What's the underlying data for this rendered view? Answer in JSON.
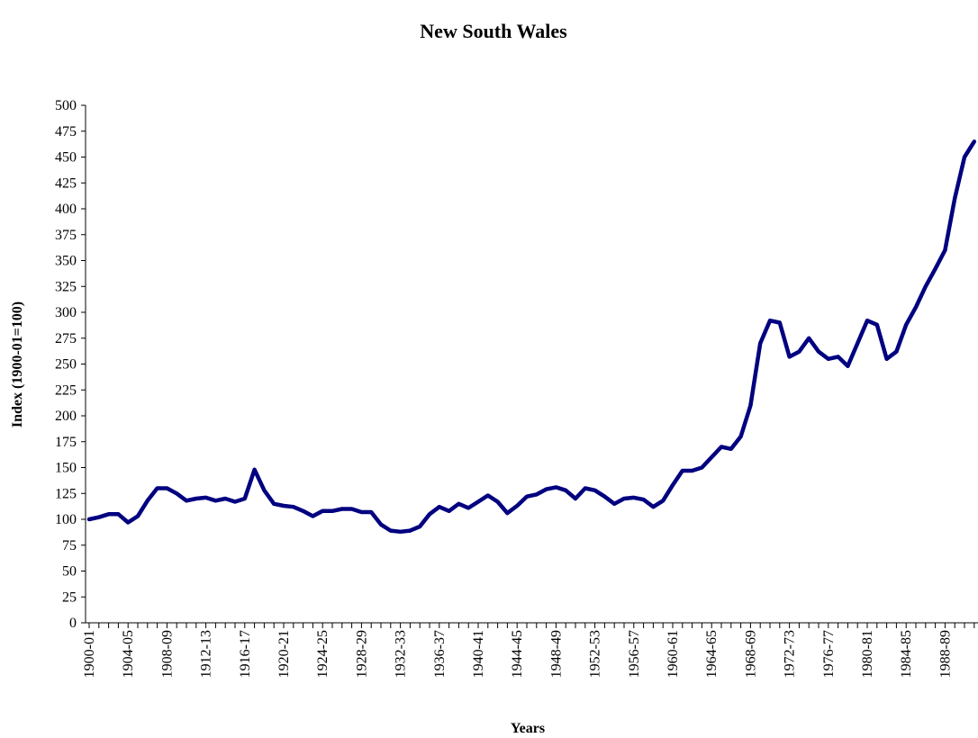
{
  "chart_data": {
    "type": "line",
    "title": "New South Wales",
    "x_label": "Years",
    "y_label": "Index (1900-01=100)",
    "categories": [
      "1900-01",
      null,
      null,
      null,
      "1904-05",
      null,
      null,
      null,
      "1908-09",
      null,
      null,
      null,
      "1912-13",
      null,
      null,
      null,
      "1916-17",
      null,
      null,
      null,
      "1920-21",
      null,
      null,
      null,
      "1924-25",
      null,
      null,
      null,
      "1928-29",
      null,
      null,
      null,
      "1932-33",
      null,
      null,
      null,
      "1936-37",
      null,
      null,
      null,
      "1940-41",
      null,
      null,
      null,
      "1944-45",
      null,
      null,
      null,
      "1948-49",
      null,
      null,
      null,
      "1952-53",
      null,
      null,
      null,
      "1956-57",
      null,
      null,
      null,
      "1960-61",
      null,
      null,
      null,
      "1964-65",
      null,
      null,
      null,
      "1968-69",
      null,
      null,
      null,
      "1972-73",
      null,
      null,
      null,
      "1976-77",
      null,
      null,
      null,
      "1980-81",
      null,
      null,
      null,
      "1984-85",
      null,
      null,
      null,
      "1988-89",
      null,
      null,
      null
    ],
    "values": [
      100,
      102,
      105,
      105,
      97,
      103,
      118,
      130,
      130,
      125,
      118,
      120,
      121,
      118,
      120,
      117,
      120,
      148,
      128,
      115,
      113,
      112,
      108,
      103,
      108,
      108,
      110,
      110,
      107,
      107,
      95,
      89,
      88,
      89,
      93,
      105,
      112,
      108,
      115,
      111,
      117,
      123,
      117,
      106,
      113,
      122,
      124,
      129,
      131,
      128,
      120,
      130,
      128,
      122,
      115,
      120,
      121,
      119,
      112,
      118,
      133,
      147,
      147,
      150,
      160,
      170,
      168,
      180,
      210,
      270,
      292,
      290,
      257,
      262,
      275,
      262,
      255,
      257,
      248,
      270,
      292,
      288,
      255,
      262,
      288,
      305,
      325,
      342,
      360,
      410,
      450,
      465
    ],
    "color": "#000080",
    "ylim": [
      0,
      500
    ],
    "yticks": [
      0,
      25,
      50,
      75,
      100,
      125,
      150,
      175,
      200,
      225,
      250,
      275,
      300,
      325,
      350,
      375,
      400,
      425,
      450,
      475,
      500
    ],
    "grid": false
  }
}
